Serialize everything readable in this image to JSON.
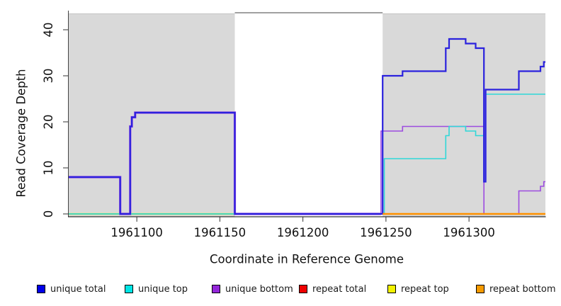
{
  "figure": {
    "xlabel": "Coordinate in Reference Genome",
    "ylabel": "Read Coverage Depth"
  },
  "chart_data": {
    "type": "line",
    "title": "",
    "xlabel": "Coordinate in Reference Genome",
    "ylabel": "Read Coverage Depth",
    "x_ticks": [
      1961100,
      1961150,
      1961200,
      1961250,
      1961300
    ],
    "y_ticks": [
      0,
      10,
      20,
      30,
      40
    ],
    "xlim": [
      1961059,
      1961346
    ],
    "ylim": [
      0,
      44
    ],
    "grid": false,
    "legend_position": "bottom",
    "background_regions": [
      {
        "name": "shaded-region-left",
        "x1": 1961059,
        "x2": 1961159,
        "fill": "#d9d9d9",
        "edge": "#c4c4c4"
      },
      {
        "name": "shaded-region-right",
        "x1": 1961248,
        "x2": 1961346,
        "fill": "#d9d9d9",
        "edge": "#c4c4c4"
      }
    ],
    "gap_top_line": {
      "x1": 1961159,
      "x2": 1961248,
      "color": "#828282"
    },
    "baseline_segments": [
      {
        "name": "repeat-total-baseline",
        "x1": 1961059,
        "x2": 1961346,
        "y": 0,
        "color": "#dd0000",
        "width": 0.8,
        "layer": "pre"
      },
      {
        "name": "repeat-top-baseline",
        "x1": 1961059,
        "x2": 1961159,
        "y": 0,
        "color": "#e6e66e",
        "width": 2.8,
        "layer": "pre"
      },
      {
        "name": "unique-top-baseline",
        "x1": 1961059,
        "x2": 1961159,
        "y": 0,
        "color": "#58bb58",
        "width": 1.6,
        "layer": "pre"
      },
      {
        "name": "repeat-bottom-baseline",
        "x1": 1961248,
        "x2": 1961346,
        "y": 0,
        "color": "#ff9100",
        "width": 2.4,
        "layer": "post"
      }
    ],
    "underlays": [
      {
        "name": "unique-bottom-underlay",
        "color": "#9d4ce0",
        "width": 3.2,
        "points": [
          [
            1961059,
            8
          ],
          [
            1961090,
            8
          ],
          [
            1961090,
            0
          ],
          [
            1961096,
            0
          ],
          [
            1961096,
            19
          ],
          [
            1961097,
            19
          ],
          [
            1961097,
            21
          ],
          [
            1961099,
            21
          ],
          [
            1961099,
            22
          ],
          [
            1961159,
            22
          ],
          [
            1961159,
            0
          ],
          [
            1961247,
            0
          ]
        ]
      }
    ],
    "series": [
      {
        "name": "unique bottom",
        "color": "#9d4ce0",
        "width": 1.6,
        "points": [
          [
            1961059,
            8
          ],
          [
            1961090,
            8
          ],
          [
            1961090,
            0
          ],
          [
            1961096,
            0
          ],
          [
            1961096,
            19
          ],
          [
            1961097,
            19
          ],
          [
            1961097,
            21
          ],
          [
            1961099,
            21
          ],
          [
            1961099,
            22
          ],
          [
            1961159,
            22
          ],
          [
            1961159,
            0
          ],
          [
            1961247,
            0
          ],
          [
            1961247,
            18
          ],
          [
            1961260,
            18
          ],
          [
            1961260,
            19
          ],
          [
            1961309,
            19
          ],
          [
            1961309,
            0
          ],
          [
            1961330,
            0
          ],
          [
            1961330,
            5
          ],
          [
            1961343,
            5
          ],
          [
            1961343,
            6
          ],
          [
            1961345,
            6
          ],
          [
            1961345,
            7
          ],
          [
            1961346,
            7
          ]
        ]
      },
      {
        "name": "unique top",
        "color": "#2fd8d8",
        "width": 1.6,
        "points": [
          [
            1961059,
            0
          ],
          [
            1961249,
            0
          ],
          [
            1961249,
            12
          ],
          [
            1961286,
            12
          ],
          [
            1961286,
            17
          ],
          [
            1961288,
            17
          ],
          [
            1961288,
            19
          ],
          [
            1961298,
            19
          ],
          [
            1961298,
            18
          ],
          [
            1961304,
            18
          ],
          [
            1961304,
            17
          ],
          [
            1961309,
            17
          ],
          [
            1961309,
            7
          ],
          [
            1961310,
            7
          ],
          [
            1961310,
            26
          ],
          [
            1961346,
            26
          ]
        ]
      },
      {
        "name": "unique total",
        "color": "#2b22dd",
        "width": 2.2,
        "points": [
          [
            1961059,
            8
          ],
          [
            1961090,
            8
          ],
          [
            1961090,
            0
          ],
          [
            1961096,
            0
          ],
          [
            1961096,
            19
          ],
          [
            1961097,
            19
          ],
          [
            1961097,
            21
          ],
          [
            1961099,
            21
          ],
          [
            1961099,
            22
          ],
          [
            1961159,
            22
          ],
          [
            1961159,
            0
          ],
          [
            1961248,
            0
          ],
          [
            1961248,
            30
          ],
          [
            1961260,
            30
          ],
          [
            1961260,
            31
          ],
          [
            1961286,
            31
          ],
          [
            1961286,
            36
          ],
          [
            1961288,
            36
          ],
          [
            1961288,
            38
          ],
          [
            1961298,
            38
          ],
          [
            1961298,
            37
          ],
          [
            1961304,
            37
          ],
          [
            1961304,
            36
          ],
          [
            1961309,
            36
          ],
          [
            1961309,
            7
          ],
          [
            1961310,
            7
          ],
          [
            1961310,
            27
          ],
          [
            1961330,
            27
          ],
          [
            1961330,
            31
          ],
          [
            1961343,
            31
          ],
          [
            1961343,
            32
          ],
          [
            1961345,
            32
          ],
          [
            1961345,
            33
          ],
          [
            1961346,
            33
          ]
        ]
      }
    ]
  },
  "legend": {
    "items": [
      {
        "label": "unique total",
        "color": "#0000e8"
      },
      {
        "label": "unique top",
        "color": "#00e5e5"
      },
      {
        "label": "unique bottom",
        "color": "#9326d9"
      },
      {
        "label": "repeat total",
        "color": "#ee0000"
      },
      {
        "label": "repeat top",
        "color": "#f2f200"
      },
      {
        "label": "repeat bottom",
        "color": "#f59a00"
      }
    ]
  }
}
